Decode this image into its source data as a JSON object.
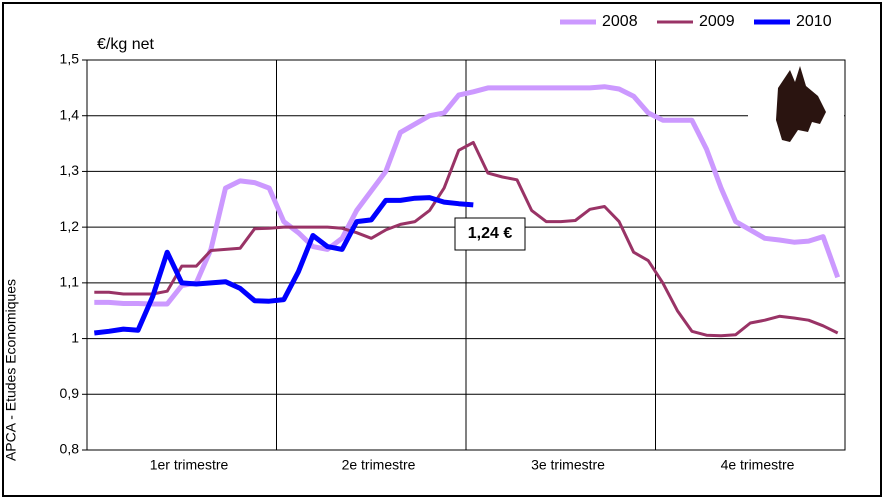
{
  "chart_data": {
    "type": "line",
    "y_unit_label": "€/kg net",
    "side_label": "APCA - Etudes Economiques",
    "annotation": "1,24 €",
    "categories": [
      null,
      null,
      null,
      null,
      null,
      null,
      "1er trimestre",
      null,
      null,
      null,
      null,
      null,
      null,
      null,
      null,
      null,
      null,
      null,
      null,
      "2e trimestre",
      null,
      null,
      null,
      null,
      null,
      null,
      null,
      null,
      null,
      null,
      null,
      null,
      "3e trimestre",
      null,
      null,
      null,
      null,
      null,
      null,
      null,
      null,
      null,
      null,
      null,
      null,
      "4e trimestre",
      null,
      null,
      null,
      null,
      null,
      null
    ],
    "series": [
      {
        "name": "2008",
        "color": "#cc99ff",
        "values": [
          1.065,
          1.065,
          1.063,
          1.063,
          1.062,
          1.062,
          1.095,
          1.1,
          1.16,
          1.27,
          1.283,
          1.28,
          1.27,
          1.21,
          1.19,
          1.165,
          1.16,
          1.18,
          1.23,
          1.265,
          1.3,
          1.37,
          1.385,
          1.4,
          1.405,
          1.437,
          1.443,
          1.45,
          1.45,
          1.45,
          1.45,
          1.45,
          1.45,
          1.45,
          1.45,
          1.452,
          1.448,
          1.435,
          1.405,
          1.392,
          1.392,
          1.392,
          1.34,
          1.27,
          1.21,
          1.195,
          1.18,
          1.177,
          1.173,
          1.175,
          1.183,
          1.11
        ]
      },
      {
        "name": "2009",
        "color": "#993366",
        "values": [
          1.083,
          1.083,
          1.08,
          1.08,
          1.08,
          1.085,
          1.13,
          1.13,
          1.158,
          1.16,
          1.162,
          1.197,
          1.198,
          1.2,
          1.2,
          1.2,
          1.2,
          1.198,
          1.19,
          1.18,
          1.195,
          1.205,
          1.21,
          1.23,
          1.27,
          1.338,
          1.352,
          1.297,
          1.29,
          1.285,
          1.23,
          1.21,
          1.21,
          1.212,
          1.232,
          1.237,
          1.21,
          1.155,
          1.14,
          1.1,
          1.05,
          1.013,
          1.006,
          1.005,
          1.007,
          1.028,
          1.033,
          1.04,
          1.037,
          1.033,
          1.023,
          1.01
        ]
      },
      {
        "name": "2010",
        "color": "#0000ff",
        "values": [
          1.01,
          1.013,
          1.017,
          1.015,
          1.075,
          1.155,
          1.1,
          1.098,
          1.1,
          1.102,
          1.09,
          1.068,
          1.067,
          1.07,
          1.12,
          1.185,
          1.165,
          1.16,
          1.21,
          1.213,
          1.248,
          1.248,
          1.252,
          1.253,
          1.245,
          1.242,
          1.24,
          null,
          null,
          null,
          null,
          null,
          null,
          null,
          null,
          null,
          null,
          null,
          null,
          null,
          null,
          null,
          null,
          null,
          null,
          null,
          null,
          null,
          null,
          null,
          null,
          null
        ]
      }
    ],
    "ylim": [
      0.8,
      1.5
    ],
    "yticks": [
      {
        "value": 0.8,
        "label": "0,8"
      },
      {
        "value": 0.9,
        "label": "0,9"
      },
      1,
      {
        "value": 1.1,
        "label": "1,1"
      },
      {
        "value": 1.2,
        "label": "1,2"
      },
      {
        "value": 1.3,
        "label": "1,3"
      },
      {
        "value": 1.4,
        "label": "1,4"
      },
      {
        "value": 1.5,
        "label": "1,5"
      }
    ],
    "grid": true,
    "legend": "top-right"
  }
}
